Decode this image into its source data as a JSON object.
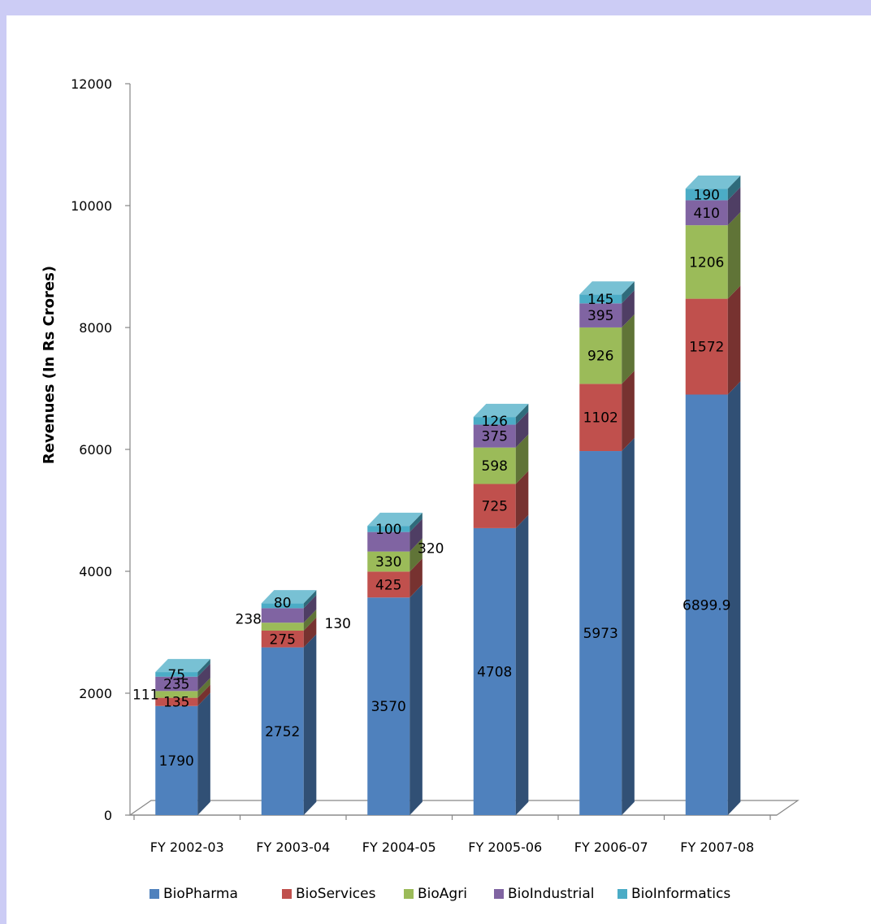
{
  "chart_data": {
    "type": "bar",
    "stacked": true,
    "style": "3d-column",
    "title": "",
    "xlabel": "",
    "ylabel": "Revenues (In Rs Crores)",
    "ylim": [
      0,
      12000
    ],
    "yticks": [
      "0",
      "2000",
      "4000",
      "6000",
      "8000",
      "10000",
      "12000"
    ],
    "grid": false,
    "legend_position": "bottom",
    "categories": [
      "FY 2002-03",
      "FY 2003-04",
      "FY 2004-05",
      "FY 2005-06",
      "FY 2006-07",
      "FY 2007-08"
    ],
    "series": [
      {
        "name": "BioPharma",
        "color": "#4f81bd",
        "values": [
          1790,
          2752,
          3570,
          4708,
          5973,
          6899.9
        ],
        "labels": [
          "1790",
          "2752",
          "3570",
          "4708",
          "5973",
          "6899.9"
        ]
      },
      {
        "name": "BioServices",
        "color": "#c0504d",
        "values": [
          135,
          275,
          425,
          725,
          1102,
          1572
        ],
        "labels": [
          "135",
          "275",
          "425",
          "725",
          "1102",
          "1572"
        ]
      },
      {
        "name": "BioAgri",
        "color": "#9bbb59",
        "values": [
          111,
          130,
          330,
          598,
          926,
          1206
        ],
        "labels": [
          "111",
          "130",
          "330",
          "598",
          "926",
          "1206"
        ]
      },
      {
        "name": "BioIndustrial",
        "color": "#8064a2",
        "values": [
          235,
          238,
          320,
          375,
          395,
          410
        ],
        "labels": [
          "235",
          "238",
          "320",
          "375",
          "395",
          "410"
        ]
      },
      {
        "name": "BioInformatics",
        "color": "#4bacc6",
        "values": [
          75,
          80,
          100,
          126,
          145,
          190
        ],
        "labels": [
          "75",
          "80",
          "100",
          "126",
          "145",
          "190"
        ]
      }
    ]
  }
}
